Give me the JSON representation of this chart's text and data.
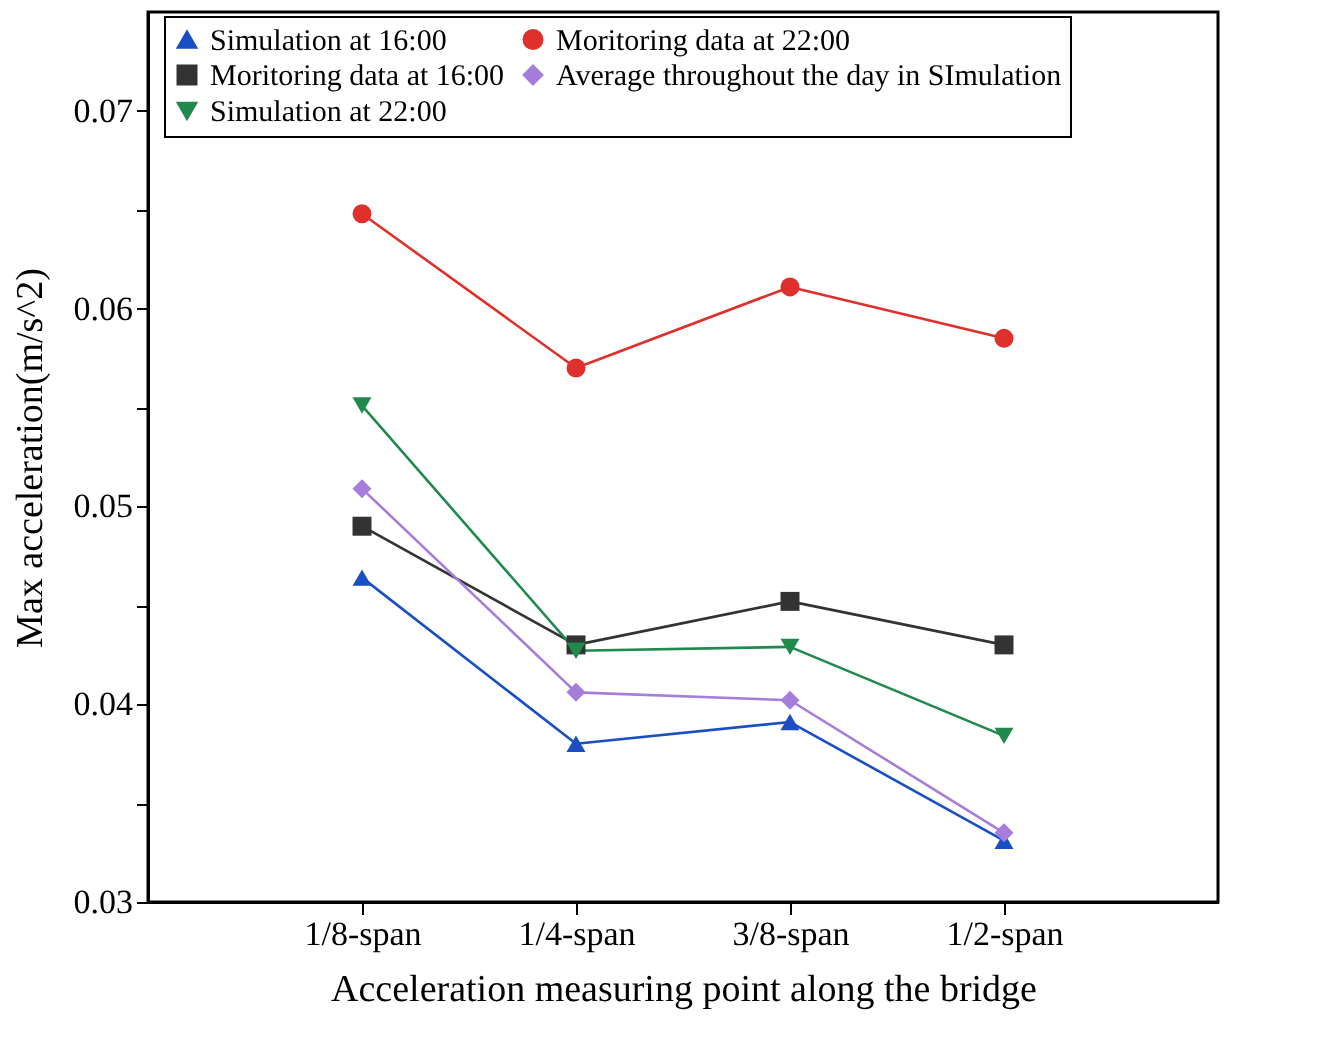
{
  "chart_data": {
    "type": "line",
    "xlabel": "Acceleration measuring point along the bridge",
    "ylabel": "Max acceleration(m/s^2)",
    "categories": [
      "1/8-span",
      "1/4-span",
      "3/8-span",
      "1/2-span"
    ],
    "series": [
      {
        "name": "Simulation at 16:00",
        "color": "#1a4fc4",
        "marker": "triangle",
        "values": [
          0.0464,
          0.038,
          0.0391,
          0.0331
        ]
      },
      {
        "name": "Moritoring data at 16:00",
        "color": "#333333",
        "marker": "square",
        "values": [
          0.049,
          0.043,
          0.0452,
          0.043
        ]
      },
      {
        "name": "Simulation at 22:00",
        "color": "#1f8a4c",
        "marker": "triangle-down",
        "values": [
          0.0551,
          0.0427,
          0.0429,
          0.0384
        ]
      },
      {
        "name": "Moritoring data at 22:00",
        "color": "#e0302c",
        "marker": "circle",
        "values": [
          0.0648,
          0.057,
          0.0611,
          0.0585
        ]
      },
      {
        "name": "Average throughout the day in SImulation",
        "color": "#a77ddb",
        "marker": "diamond",
        "values": [
          0.0509,
          0.0406,
          0.0402,
          0.0335
        ]
      }
    ],
    "ylim": [
      0.03,
      0.075
    ],
    "yticks": [
      0.03,
      {
        "value": 0.035,
        "label": null
      },
      0.04,
      {
        "value": 0.045,
        "label": null
      },
      0.05,
      {
        "value": 0.055,
        "label": null
      },
      0.06,
      {
        "value": 0.065,
        "label": null
      },
      0.07
    ],
    "grid": false,
    "legend": "top",
    "line_style": "solid"
  }
}
